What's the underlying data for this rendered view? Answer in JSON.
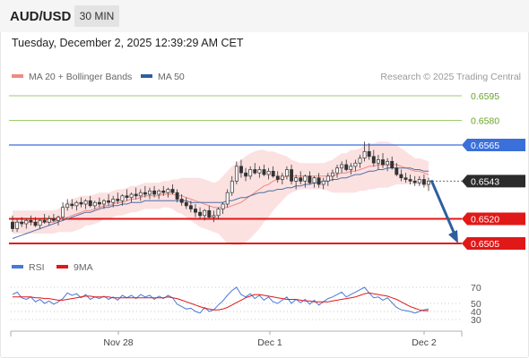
{
  "header": {
    "symbol": "AUD/USD",
    "timeframe": "30 MIN"
  },
  "datetime": "Tuesday, December 2, 2025 12:39:29 AM CET",
  "copyright": "Research © 2025 Trading Central",
  "legends": {
    "main": [
      {
        "label": "MA 20 + Bollinger Bands",
        "color": "#f08a84"
      },
      {
        "label": "MA 50",
        "color": "#2f5e9e"
      }
    ],
    "rsi": [
      {
        "label": "RSI",
        "color": "#4a78d6"
      },
      {
        "label": "9MA",
        "color": "#e01818"
      }
    ]
  },
  "chart_data": [
    {
      "type": "candlestick",
      "x_ticks": [
        "Nov 28",
        "Dec 1",
        "Dec 2"
      ],
      "y_range": [
        0.6495,
        0.6603
      ],
      "levels": [
        {
          "value": 0.6595,
          "label": "0.6595",
          "kind": "target",
          "color": "#7cbb3a"
        },
        {
          "value": 0.658,
          "label": "0.6580",
          "kind": "target",
          "color": "#7cbb3a"
        },
        {
          "value": 0.6565,
          "label": "0.6565",
          "kind": "pivot",
          "color": "#3b6fd9"
        },
        {
          "value": 0.6543,
          "label": "0.6543",
          "kind": "last-price",
          "color": "#333333"
        },
        {
          "value": 0.652,
          "label": "0.6520",
          "kind": "support",
          "color": "#e01818"
        },
        {
          "value": 0.6505,
          "label": "0.6505",
          "kind": "support",
          "color": "#e01818"
        }
      ],
      "arrow": {
        "direction": "down",
        "target": 0.6505
      },
      "candles": [
        [
          0.6518,
          0.6522,
          0.6512,
          0.6514
        ],
        [
          0.6514,
          0.652,
          0.6512,
          0.6518
        ],
        [
          0.6518,
          0.6521,
          0.6515,
          0.6517
        ],
        [
          0.6517,
          0.652,
          0.6514,
          0.6519
        ],
        [
          0.6519,
          0.6522,
          0.6516,
          0.6518
        ],
        [
          0.6518,
          0.6521,
          0.6515,
          0.6516
        ],
        [
          0.6516,
          0.652,
          0.6514,
          0.6519
        ],
        [
          0.6519,
          0.6523,
          0.6517,
          0.6518
        ],
        [
          0.6518,
          0.6522,
          0.6516,
          0.652
        ],
        [
          0.652,
          0.6523,
          0.6518,
          0.6519
        ],
        [
          0.6519,
          0.6522,
          0.6516,
          0.6521
        ],
        [
          0.6521,
          0.653,
          0.6519,
          0.6527
        ],
        [
          0.6527,
          0.6532,
          0.6525,
          0.6529
        ],
        [
          0.6529,
          0.6532,
          0.6526,
          0.6528
        ],
        [
          0.6528,
          0.6531,
          0.6525,
          0.653
        ],
        [
          0.653,
          0.6533,
          0.6527,
          0.6529
        ],
        [
          0.6529,
          0.6532,
          0.6526,
          0.6531
        ],
        [
          0.6531,
          0.6534,
          0.6527,
          0.6528
        ],
        [
          0.6528,
          0.6531,
          0.6526,
          0.653
        ],
        [
          0.653,
          0.6533,
          0.6527,
          0.6529
        ],
        [
          0.6529,
          0.6532,
          0.6526,
          0.6531
        ],
        [
          0.6531,
          0.6535,
          0.6528,
          0.653
        ],
        [
          0.653,
          0.6534,
          0.6527,
          0.6532
        ],
        [
          0.6532,
          0.6536,
          0.6529,
          0.6531
        ],
        [
          0.6531,
          0.6535,
          0.6528,
          0.6534
        ],
        [
          0.6534,
          0.6538,
          0.6531,
          0.6533
        ],
        [
          0.6533,
          0.6536,
          0.653,
          0.6535
        ],
        [
          0.6535,
          0.6539,
          0.6532,
          0.6534
        ],
        [
          0.6534,
          0.6538,
          0.6531,
          0.6536
        ],
        [
          0.6536,
          0.654,
          0.6533,
          0.6535
        ],
        [
          0.6535,
          0.6539,
          0.6532,
          0.6537
        ],
        [
          0.6537,
          0.654,
          0.6533,
          0.6535
        ],
        [
          0.6535,
          0.6538,
          0.6532,
          0.6537
        ],
        [
          0.6537,
          0.654,
          0.6534,
          0.6536
        ],
        [
          0.6536,
          0.6539,
          0.6533,
          0.6538
        ],
        [
          0.6538,
          0.6541,
          0.6535,
          0.6536
        ],
        [
          0.6536,
          0.6538,
          0.653,
          0.6532
        ],
        [
          0.6532,
          0.6535,
          0.6528,
          0.653
        ],
        [
          0.653,
          0.6533,
          0.6526,
          0.6528
        ],
        [
          0.6528,
          0.6531,
          0.6524,
          0.6526
        ],
        [
          0.6526,
          0.6529,
          0.6521,
          0.6524
        ],
        [
          0.6524,
          0.6527,
          0.652,
          0.6522
        ],
        [
          0.6522,
          0.6526,
          0.6519,
          0.6525
        ],
        [
          0.6525,
          0.6528,
          0.652,
          0.6521
        ],
        [
          0.6521,
          0.6525,
          0.6518,
          0.6522
        ],
        [
          0.6522,
          0.6527,
          0.652,
          0.6526
        ],
        [
          0.6526,
          0.653,
          0.6523,
          0.6529
        ],
        [
          0.6529,
          0.6538,
          0.6527,
          0.6536
        ],
        [
          0.6536,
          0.6546,
          0.6534,
          0.6543
        ],
        [
          0.6543,
          0.6555,
          0.6541,
          0.6552
        ],
        [
          0.6552,
          0.6556,
          0.6545,
          0.6548
        ],
        [
          0.6548,
          0.6551,
          0.6543,
          0.6546
        ],
        [
          0.6546,
          0.6552,
          0.6544,
          0.655
        ],
        [
          0.655,
          0.6554,
          0.6547,
          0.6548
        ],
        [
          0.6548,
          0.6552,
          0.6545,
          0.655
        ],
        [
          0.655,
          0.6553,
          0.6546,
          0.6547
        ],
        [
          0.6547,
          0.6551,
          0.6544,
          0.6549
        ],
        [
          0.6549,
          0.6552,
          0.6545,
          0.6546
        ],
        [
          0.6546,
          0.6549,
          0.6542,
          0.6544
        ],
        [
          0.6544,
          0.6548,
          0.6541,
          0.6546
        ],
        [
          0.6546,
          0.6552,
          0.6544,
          0.655
        ],
        [
          0.655,
          0.6553,
          0.6541,
          0.6543
        ],
        [
          0.6543,
          0.6547,
          0.6538,
          0.6545
        ],
        [
          0.6545,
          0.6549,
          0.6541,
          0.6543
        ],
        [
          0.6543,
          0.6547,
          0.6539,
          0.6546
        ],
        [
          0.6546,
          0.6549,
          0.6541,
          0.6542
        ],
        [
          0.6542,
          0.6546,
          0.6539,
          0.6545
        ],
        [
          0.6545,
          0.6548,
          0.6539,
          0.6541
        ],
        [
          0.6541,
          0.6545,
          0.6538,
          0.6543
        ],
        [
          0.6543,
          0.6548,
          0.654,
          0.6546
        ],
        [
          0.6546,
          0.655,
          0.6543,
          0.6548
        ],
        [
          0.6548,
          0.6553,
          0.6545,
          0.6551
        ],
        [
          0.6551,
          0.6555,
          0.6548,
          0.6553
        ],
        [
          0.6553,
          0.6556,
          0.6549,
          0.655
        ],
        [
          0.655,
          0.6554,
          0.6547,
          0.6552
        ],
        [
          0.6552,
          0.6556,
          0.6549,
          0.6554
        ],
        [
          0.6554,
          0.6559,
          0.6551,
          0.6557
        ],
        [
          0.6557,
          0.6567,
          0.6555,
          0.6561
        ],
        [
          0.6561,
          0.6566,
          0.6556,
          0.6558
        ],
        [
          0.6558,
          0.6562,
          0.6552,
          0.6554
        ],
        [
          0.6554,
          0.6559,
          0.655,
          0.6556
        ],
        [
          0.6556,
          0.656,
          0.6551,
          0.6553
        ],
        [
          0.6553,
          0.6557,
          0.6549,
          0.6555
        ],
        [
          0.6555,
          0.6558,
          0.655,
          0.6551
        ],
        [
          0.6551,
          0.6554,
          0.6546,
          0.6547
        ],
        [
          0.6547,
          0.655,
          0.6543,
          0.6545
        ],
        [
          0.6545,
          0.6548,
          0.6542,
          0.6544
        ],
        [
          0.6544,
          0.6547,
          0.6541,
          0.6543
        ],
        [
          0.6543,
          0.6546,
          0.654,
          0.6542
        ],
        [
          0.6542,
          0.6546,
          0.654,
          0.6544
        ],
        [
          0.6544,
          0.6547,
          0.6539,
          0.6541
        ],
        [
          0.6541,
          0.6545,
          0.6537,
          0.6543
        ]
      ],
      "ma20": [
        0.6518,
        0.6518,
        0.6518,
        0.6518,
        0.6518,
        0.6518,
        0.6518,
        0.6518,
        0.6518,
        0.6518,
        0.6519,
        0.652,
        0.6521,
        0.6522,
        0.6523,
        0.6524,
        0.6525,
        0.6525,
        0.6526,
        0.6527,
        0.6528,
        0.6528,
        0.6529,
        0.653,
        0.653,
        0.6531,
        0.6532,
        0.6532,
        0.6533,
        0.6534,
        0.6534,
        0.6534,
        0.6534,
        0.6535,
        0.6535,
        0.6535,
        0.6534,
        0.6534,
        0.6533,
        0.6532,
        0.6531,
        0.653,
        0.6529,
        0.6528,
        0.6527,
        0.6527,
        0.6527,
        0.6527,
        0.6528,
        0.6529,
        0.653,
        0.6532,
        0.6534,
        0.6536,
        0.6538,
        0.654,
        0.6541,
        0.6543,
        0.6544,
        0.6545,
        0.6546,
        0.6546,
        0.6546,
        0.6546,
        0.6546,
        0.6546,
        0.6546,
        0.6546,
        0.6546,
        0.6546,
        0.6546,
        0.6547,
        0.6548,
        0.6548,
        0.6549,
        0.6549,
        0.655,
        0.6551,
        0.6552,
        0.6552,
        0.6553,
        0.6553,
        0.6553,
        0.6553,
        0.6553,
        0.6552,
        0.6551,
        0.655,
        0.6549,
        0.6549,
        0.6548,
        0.6547
      ],
      "bb_width": [
        0.0007,
        0.0007,
        0.0007,
        0.0007,
        0.0007,
        0.0007,
        0.0007,
        0.0007,
        0.0007,
        0.0007,
        0.0007,
        0.0008,
        0.0009,
        0.001,
        0.001,
        0.001,
        0.0009,
        0.0009,
        0.0009,
        0.0009,
        0.0008,
        0.0008,
        0.0008,
        0.0008,
        0.0008,
        0.0008,
        0.0008,
        0.0008,
        0.0008,
        0.0008,
        0.0008,
        0.0008,
        0.0008,
        0.0008,
        0.0008,
        0.0009,
        0.001,
        0.0011,
        0.0012,
        0.0013,
        0.0014,
        0.0015,
        0.0015,
        0.0015,
        0.0015,
        0.0016,
        0.0019,
        0.0022,
        0.0024,
        0.0025,
        0.0026,
        0.0026,
        0.0026,
        0.0025,
        0.0024,
        0.0022,
        0.002,
        0.0018,
        0.0016,
        0.0014,
        0.0012,
        0.001,
        0.0009,
        0.0008,
        0.0008,
        0.0008,
        0.0008,
        0.0008,
        0.0008,
        0.0009,
        0.001,
        0.0011,
        0.0012,
        0.0012,
        0.0013,
        0.0013,
        0.0013,
        0.0014,
        0.0014,
        0.0014,
        0.0014,
        0.0014,
        0.0014,
        0.0013,
        0.0012,
        0.0011,
        0.001,
        0.0009,
        0.0008,
        0.0008,
        0.0008,
        0.0008
      ],
      "ma50": [
        0.6508,
        0.6509,
        0.651,
        0.6511,
        0.6512,
        0.6513,
        0.6514,
        0.6515,
        0.6516,
        0.6517,
        0.6518,
        0.6519,
        0.652,
        0.6521,
        0.6522,
        0.6523,
        0.6524,
        0.6524,
        0.6525,
        0.6526,
        0.6527,
        0.6527,
        0.6528,
        0.6528,
        0.6529,
        0.6529,
        0.653,
        0.653,
        0.653,
        0.6531,
        0.6531,
        0.6531,
        0.6531,
        0.6531,
        0.6531,
        0.6531,
        0.6531,
        0.6531,
        0.6531,
        0.653,
        0.653,
        0.653,
        0.653,
        0.653,
        0.653,
        0.653,
        0.653,
        0.6531,
        0.6531,
        0.6532,
        0.6533,
        0.6533,
        0.6534,
        0.6535,
        0.6536,
        0.6536,
        0.6537,
        0.6537,
        0.6538,
        0.6538,
        0.6539,
        0.6539,
        0.654,
        0.654,
        0.6541,
        0.6541,
        0.6542,
        0.6542,
        0.6543,
        0.6543,
        0.6544,
        0.6544,
        0.6545,
        0.6545,
        0.6546,
        0.6547,
        0.6547,
        0.6548,
        0.6549,
        0.6549,
        0.655,
        0.655,
        0.6551,
        0.6551,
        0.6551,
        0.6551,
        0.6551,
        0.6551,
        0.655,
        0.655,
        0.6549,
        0.6549
      ]
    },
    {
      "type": "line",
      "name": "RSI panel",
      "y_range": [
        20,
        78
      ],
      "y_ticks": [
        70,
        50,
        40,
        30
      ],
      "series": [
        {
          "name": "RSI",
          "color": "#4a78d6",
          "values": [
            61,
            64,
            57,
            55,
            58,
            52,
            55,
            50,
            53,
            49,
            52,
            56,
            63,
            60,
            62,
            57,
            61,
            55,
            58,
            56,
            59,
            55,
            58,
            54,
            60,
            57,
            60,
            56,
            61,
            58,
            60,
            55,
            59,
            56,
            60,
            57,
            49,
            46,
            43,
            44,
            40,
            38,
            45,
            40,
            42,
            48,
            53,
            60,
            66,
            70,
            61,
            58,
            62,
            56,
            60,
            54,
            58,
            52,
            50,
            54,
            58,
            50,
            55,
            51,
            55,
            49,
            54,
            48,
            52,
            56,
            58,
            61,
            64,
            58,
            61,
            64,
            67,
            70,
            63,
            57,
            58,
            54,
            57,
            51,
            45,
            42,
            41,
            40,
            38,
            40,
            42,
            43
          ]
        },
        {
          "name": "9MA",
          "color": "#e01818",
          "values": [
            58,
            58,
            58,
            58,
            58,
            57,
            57,
            56,
            56,
            55,
            54,
            54,
            55,
            56,
            57,
            58,
            59,
            59,
            58,
            58,
            58,
            58,
            57,
            57,
            57,
            57,
            57,
            57,
            57,
            57,
            57,
            57,
            57,
            57,
            58,
            57,
            56,
            54,
            52,
            50,
            48,
            46,
            44,
            43,
            42,
            42,
            43,
            45,
            48,
            51,
            54,
            57,
            59,
            61,
            61,
            60,
            59,
            58,
            57,
            56,
            55,
            55,
            55,
            54,
            53,
            53,
            52,
            52,
            52,
            52,
            53,
            54,
            55,
            56,
            57,
            58,
            60,
            62,
            63,
            62,
            61,
            60,
            59,
            57,
            55,
            52,
            49,
            46,
            44,
            42,
            41,
            41
          ]
        }
      ]
    }
  ]
}
